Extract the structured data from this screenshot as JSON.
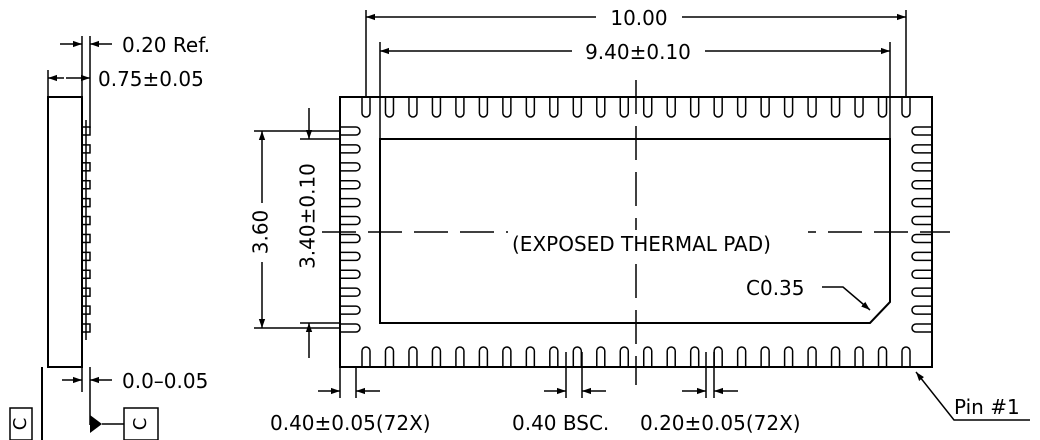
{
  "side_view": {
    "ref_dim": "0.20  Ref.",
    "thickness_dim": "0.75±0.05",
    "standoff_dim": "0.0–0.05",
    "datum_left": "C",
    "datum_right": "C"
  },
  "bottom_view": {
    "overall_length": "10.00",
    "pad_length": "9.40±0.10",
    "overall_height": "3.60",
    "pad_height": "3.40±0.10",
    "pad_label": "(EXPOSED  THERMAL  PAD)",
    "chamfer": "C0.35",
    "pin_label": "Pin  #1",
    "lead_length": "0.40±0.05(72X)",
    "pitch": "0.40  BSC.",
    "lead_width": "0.20±0.05(72X)",
    "top_lead_count": 24,
    "bottom_lead_count": 24,
    "side_lead_count": 12
  }
}
